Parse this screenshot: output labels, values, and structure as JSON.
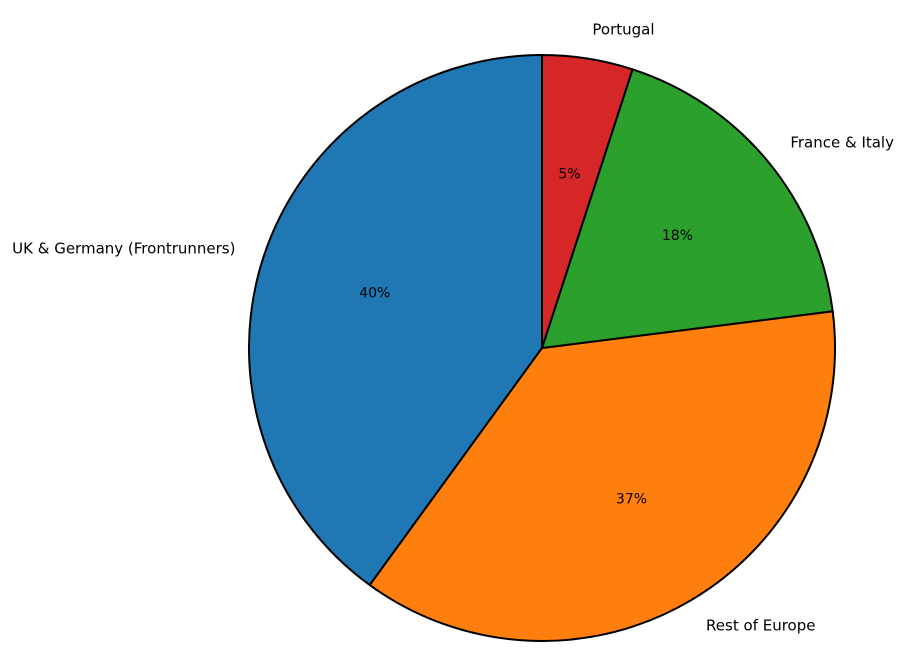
{
  "chart_data": {
    "type": "pie",
    "title": "",
    "start_angle_deg": 90,
    "direction": "counterclockwise",
    "slice_edge_color": "#000000",
    "slices": [
      {
        "label": "UK & Germany (Frontrunners)",
        "value": 40,
        "pct_label": "40%",
        "color": "#1f77b4"
      },
      {
        "label": "Rest of Europe",
        "value": 37,
        "pct_label": "37%",
        "color": "#ff7f0e"
      },
      {
        "label": "France & Italy",
        "value": 18,
        "pct_label": "18%",
        "color": "#2ca02c"
      },
      {
        "label": "Portugal",
        "value": 5,
        "pct_label": "5%",
        "color": "#d62728"
      }
    ]
  }
}
